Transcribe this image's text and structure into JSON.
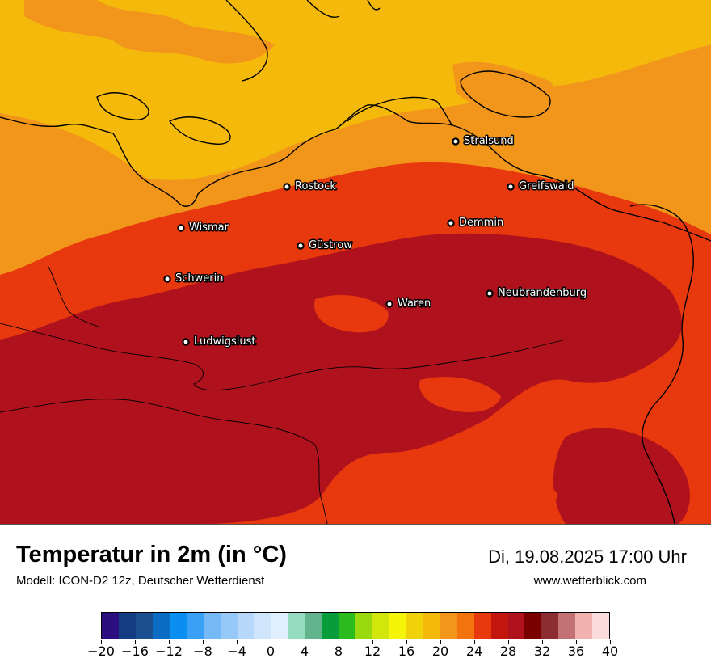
{
  "title": "Temperatur in 2m (in °C)",
  "model": "Modell: ICON-D2 12z, Deutscher Wetterdienst",
  "datetime": "Di, 19.08.2025 17:00 Uhr",
  "website": "www.wetterblick.com",
  "cities": [
    {
      "name": "Stralsund"
    },
    {
      "name": "Rostock"
    },
    {
      "name": "Greifswald"
    },
    {
      "name": "Wismar"
    },
    {
      "name": "Demmin"
    },
    {
      "name": "Güstrow"
    },
    {
      "name": "Schwerin"
    },
    {
      "name": "Neubrandenburg"
    },
    {
      "name": "Waren"
    },
    {
      "name": "Ludwigslust"
    }
  ],
  "legend": {
    "colors": [
      "#2d0e7e",
      "#143c82",
      "#1b4f8f",
      "#0a6cc2",
      "#0a8ef0",
      "#3aa0f5",
      "#76b9f7",
      "#96c8f8",
      "#b6d8fa",
      "#cfe5fb",
      "#e2efff",
      "#96dcc2",
      "#62b48c",
      "#089c3a",
      "#2cbb1e",
      "#9ad90e",
      "#d1e60a",
      "#f5f50a",
      "#f0d20b",
      "#f5b90b",
      "#f2961b",
      "#f2740f",
      "#e8380e",
      "#c2160f",
      "#b0121d",
      "#7a0000",
      "#8c2e31",
      "#c27274",
      "#f2b2b0",
      "#fbdcdc"
    ],
    "ticks": [
      "−20",
      "−16",
      "−12",
      "−8",
      "−4",
      "0",
      "4",
      "8",
      "12",
      "16",
      "20",
      "24",
      "28",
      "32",
      "36",
      "40"
    ],
    "min": -20,
    "max": 40
  },
  "map_colors": {
    "sea_yellow": "#f5b90b",
    "warm_orange": "#f2961b",
    "hot_red": "#e8380e",
    "very_hot": "#b0121d"
  }
}
